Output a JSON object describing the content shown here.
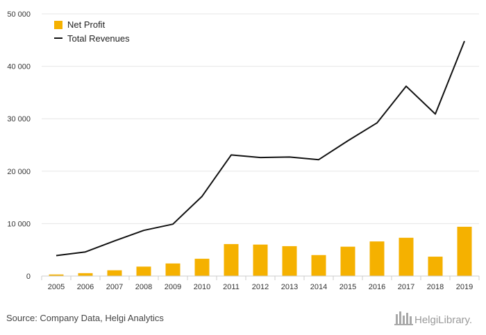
{
  "chart_data": {
    "type": "bar",
    "categories": [
      "2005",
      "2006",
      "2007",
      "2008",
      "2009",
      "2010",
      "2011",
      "2012",
      "2013",
      "2014",
      "2015",
      "2016",
      "2017",
      "2018",
      "2019"
    ],
    "series": [
      {
        "name": "Net Profit",
        "type": "bar",
        "color": "#f5b100",
        "values": [
          300,
          550,
          1100,
          1800,
          2400,
          3300,
          6100,
          6000,
          5700,
          4000,
          5600,
          6600,
          7300,
          3700,
          9400
        ]
      },
      {
        "name": "Total Revenues",
        "type": "line",
        "color": "#111111",
        "values": [
          3900,
          4600,
          6700,
          8700,
          9900,
          15200,
          23100,
          22600,
          22700,
          22200,
          25800,
          29200,
          36200,
          30900,
          44800
        ]
      }
    ],
    "ylim": [
      0,
      50000
    ],
    "yticks": [
      0,
      10000,
      20000,
      30000,
      40000,
      50000
    ],
    "ytick_labels": [
      "0",
      "10 000",
      "20 000",
      "30 000",
      "40 000",
      "50 000"
    ],
    "grid": true,
    "legend_position": "top-left"
  },
  "legend": {
    "net_profit_label": "Net Profit",
    "total_revenues_label": "Total Revenues"
  },
  "footer": {
    "source": "Source: Company Data, Helgi Analytics",
    "brand": "HelgiLibrary."
  },
  "colors": {
    "bar": "#f5b100",
    "line": "#111111",
    "grid": "#e6e6e6",
    "axis": "#cccccc"
  }
}
